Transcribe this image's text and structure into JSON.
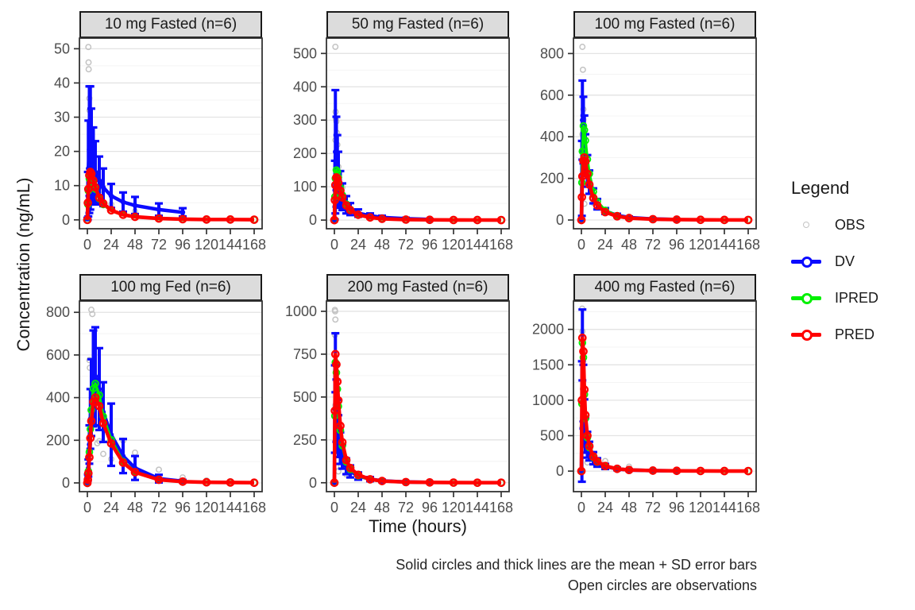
{
  "colors": {
    "obs": "#c3c3c3",
    "dv": "#0b0bff",
    "ipred": "#00f000",
    "pred": "#ff0000",
    "strip_bg": "#dcdcdc",
    "strip_border": "#1a1a1a",
    "panel_border": "#333333",
    "grid_major": "#e3e3e3",
    "grid_minor": "#f0f0f0",
    "tick": "#333333",
    "tick_text": "#4d4d4d"
  },
  "chart_data": {
    "type": "line",
    "xlabel": "Time (hours)",
    "ylabel": "Concentration (ng/mL)",
    "caption_line1": "Solid circles and thick lines are the mean + SD error bars",
    "caption_line2": "Open circles are observations",
    "legend": {
      "title": "Legend",
      "entries": [
        {
          "label": "OBS",
          "type": "open-point",
          "color": "#c3c3c3"
        },
        {
          "label": "DV",
          "type": "line-point",
          "color": "#0b0bff"
        },
        {
          "label": "IPRED",
          "type": "line-point",
          "color": "#00f000"
        },
        {
          "label": "PRED",
          "type": "line-point",
          "color": "#ff0000"
        }
      ],
      "position": "right"
    },
    "x_ticks": [
      0,
      24,
      48,
      72,
      96,
      120,
      144,
      168
    ],
    "xlim": [
      -8,
      176
    ],
    "grid": "horizontal-only",
    "series_times": [
      0,
      0.5,
      1,
      2,
      3,
      4,
      6,
      8,
      12,
      16,
      24,
      36,
      48,
      72,
      96,
      120,
      144,
      168
    ],
    "dv_times": [
      0,
      0.5,
      1,
      2,
      3,
      4,
      6,
      8,
      12,
      16,
      24,
      36,
      48,
      72,
      96
    ],
    "facets": [
      {
        "title": "10 mg Fasted (n=6)",
        "yticks": [
          0,
          10,
          20,
          30,
          40,
          50
        ],
        "ylim": [
          -2.6,
          53.1
        ],
        "pred": [
          0,
          5,
          9,
          13,
          14,
          13.5,
          11.5,
          9.5,
          6.5,
          4.8,
          2.8,
          1.5,
          0.9,
          0.4,
          0.2,
          0.1,
          0.1,
          0.05
        ],
        "ipred": [
          0,
          4.5,
          8.5,
          12,
          13,
          12.5,
          10.8,
          9,
          6.2,
          4.5,
          2.7,
          1.4,
          0.85,
          0.4,
          0.2,
          0.1,
          0.1,
          0.05
        ],
        "dv_mean": [
          0.3,
          7,
          15,
          20.5,
          21,
          18.5,
          16,
          14,
          11.5,
          9.5,
          7,
          5.2,
          4.2,
          3,
          2.2
        ],
        "dv_sd": [
          0.3,
          7,
          14,
          18.5,
          18,
          14,
          11,
          9,
          7,
          5.5,
          3.5,
          2.8,
          2.5,
          1.8,
          1.2
        ],
        "obs": [
          [
            1,
            50.5
          ],
          [
            1.2,
            46
          ],
          [
            1.3,
            44
          ],
          [
            2,
            35.5
          ],
          [
            2.2,
            32
          ],
          [
            3,
            27
          ],
          [
            3.5,
            24
          ],
          [
            4,
            22
          ],
          [
            6,
            16.5
          ],
          [
            7,
            13.5
          ],
          [
            12,
            8.5
          ],
          [
            24,
            4.5
          ],
          [
            48,
            2.5
          ],
          [
            96,
            1
          ]
        ]
      },
      {
        "title": "50 mg Fasted (n=6)",
        "yticks": [
          0,
          100,
          200,
          300,
          400,
          500
        ],
        "ylim": [
          -26,
          546
        ],
        "pred": [
          0,
          60,
          105,
          128,
          125,
          112,
          88,
          68,
          44,
          30,
          16,
          8,
          4,
          1.5,
          0.8,
          0.4,
          0.2,
          0.1
        ],
        "ipred": [
          0,
          70,
          125,
          150,
          145,
          128,
          98,
          75,
          48,
          32,
          17,
          8.5,
          4.2,
          1.6,
          0.8,
          0.4,
          0.2,
          0.1
        ],
        "dv_mean": [
          0.5,
          90,
          205,
          175,
          150,
          125,
          92,
          70,
          46,
          33,
          21,
          13,
          8,
          4,
          2
        ],
        "dv_sd": [
          0.5,
          88,
          185,
          135,
          105,
          80,
          55,
          40,
          26,
          18,
          11,
          7,
          5,
          3,
          1.5
        ],
        "obs": [
          [
            1,
            520
          ],
          [
            1.2,
            325
          ],
          [
            1.5,
            302
          ],
          [
            2,
            296
          ],
          [
            2.5,
            262
          ],
          [
            1,
            240
          ],
          [
            3,
            226
          ],
          [
            2.2,
            190
          ],
          [
            4,
            160
          ],
          [
            1.5,
            102
          ],
          [
            8,
            98
          ],
          [
            6,
            62
          ],
          [
            12,
            42
          ],
          [
            24,
            20
          ],
          [
            48,
            9
          ],
          [
            96,
            3
          ]
        ]
      },
      {
        "title": "100 mg Fasted (n=6)",
        "yticks": [
          0,
          200,
          400,
          600,
          800
        ],
        "ylim": [
          -42,
          874
        ],
        "pred": [
          0,
          110,
          210,
          285,
          300,
          282,
          222,
          170,
          106,
          70,
          38,
          18,
          9,
          4,
          2,
          1,
          0.5,
          0.3
        ],
        "ipred": [
          0,
          180,
          330,
          452,
          432,
          382,
          292,
          222,
          136,
          88,
          46,
          21,
          10,
          4.2,
          2,
          1,
          0.5,
          0.3
        ],
        "dv_mean": [
          1,
          200,
          480,
          432,
          372,
          312,
          236,
          182,
          116,
          76,
          43,
          22,
          12,
          5,
          2.5
        ],
        "dv_sd": [
          1,
          180,
          190,
          160,
          130,
          100,
          76,
          56,
          36,
          25,
          14,
          8,
          5,
          3,
          1.5
        ],
        "obs": [
          [
            1,
            832
          ],
          [
            1.5,
            722
          ],
          [
            2,
            532
          ],
          [
            2,
            482
          ],
          [
            2.5,
            425
          ],
          [
            1,
            412
          ],
          [
            3,
            362
          ],
          [
            4,
            302
          ],
          [
            6,
            232
          ],
          [
            8,
            186
          ],
          [
            3,
            78
          ],
          [
            12,
            82
          ],
          [
            24,
            42
          ],
          [
            48,
            16
          ],
          [
            72,
            8
          ],
          [
            96,
            4
          ]
        ]
      },
      {
        "title": "100 mg Fed (n=6)",
        "yticks": [
          0,
          200,
          400,
          600,
          800
        ],
        "ylim": [
          -41,
          853
        ],
        "pred": [
          0,
          15,
          45,
          120,
          210,
          290,
          380,
          400,
          360,
          280,
          185,
          95,
          50,
          15,
          6,
          3,
          2,
          1
        ],
        "ipred": [
          0,
          18,
          55,
          145,
          252,
          342,
          442,
          466,
          412,
          312,
          202,
          100,
          52,
          15,
          6,
          3,
          2,
          1
        ],
        "dv_mean": [
          1,
          25,
          70,
          180,
          300,
          400,
          490,
          500,
          440,
          332,
          226,
          126,
          70,
          20,
          8
        ],
        "dv_sd": [
          1,
          15,
          40,
          90,
          140,
          180,
          225,
          230,
          192,
          140,
          146,
          80,
          56,
          18,
          6
        ],
        "obs": [
          [
            4,
            812
          ],
          [
            5,
            792
          ],
          [
            2,
            576
          ],
          [
            2.5,
            540
          ],
          [
            6,
            538
          ],
          [
            8,
            415
          ],
          [
            3,
            340
          ],
          [
            1.5,
            130
          ],
          [
            10,
            186
          ],
          [
            12,
            196
          ],
          [
            16,
            136
          ],
          [
            24,
            112
          ],
          [
            36,
            198
          ],
          [
            48,
            142
          ],
          [
            72,
            62
          ],
          [
            96,
            26
          ],
          [
            120,
            12
          ],
          [
            144,
            8
          ]
        ]
      },
      {
        "title": "200 mg Fasted (n=6)",
        "yticks": [
          0,
          250,
          500,
          750,
          1000
        ],
        "ylim": [
          -52,
          1060
        ],
        "pred": [
          0,
          420,
          750,
          690,
          590,
          480,
          332,
          236,
          132,
          86,
          46,
          20,
          10,
          4,
          2,
          1,
          0.5,
          0.3
        ],
        "ipred": [
          0,
          390,
          702,
          642,
          546,
          446,
          306,
          216,
          122,
          78,
          41,
          18,
          9,
          4,
          2,
          1,
          0.5,
          0.3
        ],
        "dv_mean": [
          1,
          430,
          700,
          420,
          332,
          272,
          202,
          152,
          96,
          66,
          39,
          21,
          11,
          4.5,
          2
        ],
        "dv_sd": [
          1,
          255,
          172,
          182,
          152,
          122,
          92,
          70,
          46,
          35,
          21,
          12,
          7,
          3,
          1.5
        ],
        "obs": [
          [
            0.5,
            1008
          ],
          [
            0.75,
            1000
          ],
          [
            1,
            952
          ],
          [
            0.5,
            862
          ],
          [
            1.5,
            652
          ],
          [
            2,
            602
          ],
          [
            2.5,
            462
          ],
          [
            1,
            452
          ],
          [
            3,
            312
          ],
          [
            1,
            242
          ],
          [
            2,
            96
          ],
          [
            4,
            66
          ],
          [
            12,
            48
          ],
          [
            24,
            32
          ],
          [
            48,
            12
          ],
          [
            96,
            4
          ]
        ]
      },
      {
        "title": "400 mg Fasted (n=6)",
        "yticks": [
          0,
          500,
          1000,
          1500,
          2000
        ],
        "ylim": [
          -290,
          2400
        ],
        "pred": [
          0,
          1000,
          1880,
          1690,
          1150,
          790,
          500,
          352,
          206,
          136,
          72,
          32,
          16,
          7,
          4,
          2,
          1,
          0.5
        ],
        "ipred": [
          0,
          950,
          1812,
          1602,
          1082,
          742,
          472,
          332,
          192,
          126,
          66,
          30,
          15,
          7,
          4,
          2,
          1,
          0.5
        ],
        "dv_mean": [
          1,
          700,
          1780,
          1050,
          680,
          502,
          372,
          282,
          182,
          122,
          66,
          31,
          16,
          7,
          3
        ],
        "dv_sd": [
          1,
          850,
          500,
          450,
          332,
          242,
          182,
          132,
          86,
          60,
          36,
          18,
          10,
          5,
          2
        ],
        "obs": [
          [
            0.75,
            2292
          ],
          [
            1,
            1972
          ],
          [
            1.5,
            1162
          ],
          [
            1,
            622
          ],
          [
            2,
            642
          ],
          [
            2.5,
            542
          ],
          [
            1.5,
            322
          ],
          [
            3,
            312
          ],
          [
            4,
            302
          ],
          [
            6,
            122
          ],
          [
            24,
            142
          ],
          [
            48,
            62
          ],
          [
            72,
            26
          ],
          [
            96,
            12
          ]
        ]
      }
    ]
  }
}
